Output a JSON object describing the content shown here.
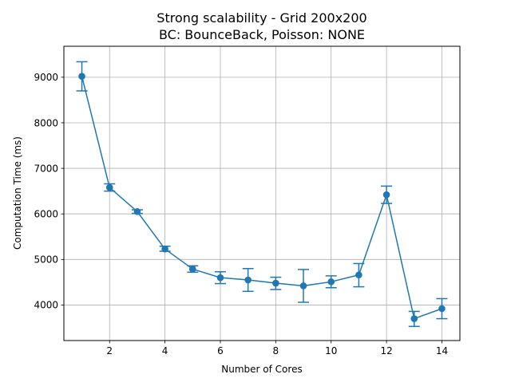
{
  "chart_data": {
    "type": "line",
    "title": "Strong scalability - Grid 200x200",
    "subtitle": "BC: BounceBack, Poisson: NONE",
    "xlabel": "Number of Cores",
    "ylabel": "Computation Time (ms)",
    "xlim": [
      0.35,
      14.65
    ],
    "ylim": [
      3220,
      9680
    ],
    "grid": true,
    "color": "#1f77b4",
    "xticks": [
      2,
      4,
      6,
      8,
      10,
      12,
      14
    ],
    "yticks": [
      4000,
      5000,
      6000,
      7000,
      8000,
      9000
    ],
    "series": [
      {
        "x": [
          1,
          2,
          3,
          4,
          5,
          6,
          7,
          8,
          9,
          10,
          11,
          12,
          13,
          14
        ],
        "y": [
          9020,
          6580,
          6050,
          5230,
          4790,
          4600,
          4550,
          4480,
          4420,
          4510,
          4660,
          6420,
          3700,
          3920
        ],
        "err_low": [
          8700,
          6500,
          6010,
          5180,
          4720,
          4470,
          4300,
          4340,
          4060,
          4380,
          4400,
          6230,
          3530,
          3700
        ],
        "err_high": [
          9340,
          6660,
          6090,
          5290,
          4860,
          4730,
          4800,
          4610,
          4780,
          4640,
          4910,
          6610,
          3860,
          4140
        ]
      }
    ]
  }
}
